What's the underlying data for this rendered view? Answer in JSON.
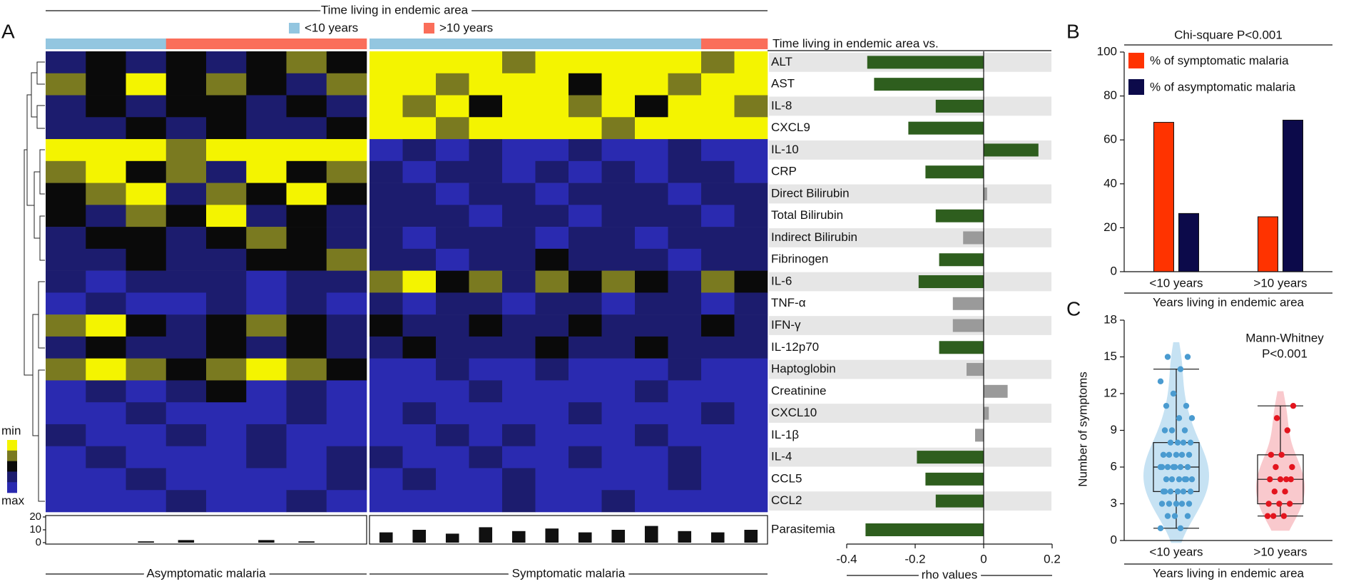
{
  "chart_data": [
    {
      "type": "heatmap",
      "panel": "A",
      "title": "Time living in endemic area",
      "legend": [
        {
          "name": "<10 years",
          "color": "#93c6e0"
        },
        {
          "name": ">10 years",
          "color": "#fa6e5a"
        }
      ],
      "groups": [
        "Asymptomatic malaria",
        "Symptomatic malaria"
      ],
      "outcome_group": [
        0,
        0,
        0,
        0,
        0,
        0,
        0,
        0,
        1,
        1,
        1,
        1,
        1,
        1,
        1,
        1,
        1,
        1,
        1,
        1
      ],
      "time_group": [
        0,
        0,
        0,
        1,
        1,
        1,
        1,
        1,
        0,
        0,
        0,
        0,
        0,
        0,
        0,
        0,
        0,
        0,
        1,
        1
      ],
      "zlim": [
        0,
        4
      ],
      "colorscale": [
        "#f4f400",
        "#7a7a20",
        "#0a0a0a",
        "#1c1c6e",
        "#2a2ab0"
      ],
      "colorbar": [
        "min",
        "max"
      ],
      "values": [
        [
          3,
          2,
          3,
          2,
          3,
          2,
          1,
          2,
          0,
          0,
          0,
          0,
          1,
          0,
          0,
          0,
          0,
          0,
          1,
          0
        ],
        [
          1,
          2,
          0,
          2,
          1,
          2,
          3,
          1,
          0,
          0,
          1,
          0,
          0,
          0,
          2,
          0,
          0,
          1,
          0,
          0
        ],
        [
          3,
          2,
          3,
          2,
          2,
          3,
          2,
          3,
          0,
          1,
          0,
          2,
          0,
          0,
          1,
          0,
          2,
          0,
          0,
          1
        ],
        [
          3,
          3,
          2,
          3,
          2,
          3,
          3,
          2,
          0,
          0,
          1,
          0,
          0,
          0,
          0,
          1,
          0,
          0,
          0,
          0
        ],
        [
          0,
          0,
          0,
          1,
          0,
          0,
          0,
          0,
          4,
          3,
          4,
          3,
          4,
          4,
          3,
          4,
          4,
          3,
          4,
          4
        ],
        [
          1,
          0,
          2,
          1,
          3,
          0,
          2,
          1,
          3,
          4,
          3,
          3,
          4,
          3,
          4,
          3,
          4,
          3,
          3,
          4
        ],
        [
          2,
          1,
          0,
          3,
          1,
          2,
          0,
          2,
          3,
          3,
          4,
          3,
          3,
          4,
          3,
          3,
          3,
          4,
          3,
          3
        ],
        [
          2,
          3,
          1,
          2,
          0,
          3,
          2,
          3,
          3,
          3,
          3,
          4,
          3,
          3,
          4,
          3,
          3,
          3,
          4,
          3
        ],
        [
          3,
          2,
          2,
          3,
          2,
          1,
          2,
          3,
          3,
          4,
          3,
          3,
          3,
          4,
          3,
          3,
          4,
          3,
          3,
          3
        ],
        [
          3,
          3,
          2,
          3,
          3,
          2,
          2,
          1,
          3,
          3,
          4,
          3,
          3,
          2,
          3,
          3,
          3,
          4,
          3,
          3
        ],
        [
          3,
          4,
          3,
          3,
          3,
          4,
          3,
          3,
          1,
          0,
          2,
          1,
          3,
          1,
          2,
          1,
          2,
          3,
          1,
          2
        ],
        [
          4,
          3,
          4,
          4,
          3,
          4,
          3,
          4,
          3,
          4,
          3,
          3,
          4,
          3,
          3,
          4,
          3,
          3,
          4,
          3
        ],
        [
          1,
          0,
          2,
          3,
          2,
          1,
          2,
          3,
          2,
          3,
          3,
          2,
          3,
          3,
          2,
          3,
          3,
          3,
          2,
          3
        ],
        [
          3,
          2,
          3,
          3,
          2,
          3,
          2,
          3,
          3,
          2,
          3,
          3,
          3,
          2,
          3,
          3,
          2,
          3,
          3,
          3
        ],
        [
          1,
          0,
          1,
          2,
          1,
          0,
          1,
          2,
          4,
          4,
          3,
          4,
          4,
          3,
          4,
          4,
          4,
          3,
          4,
          4
        ],
        [
          4,
          3,
          4,
          3,
          2,
          4,
          3,
          4,
          4,
          4,
          4,
          3,
          4,
          4,
          4,
          4,
          3,
          4,
          4,
          4
        ],
        [
          4,
          4,
          3,
          4,
          4,
          4,
          3,
          4,
          4,
          3,
          4,
          4,
          4,
          4,
          3,
          4,
          4,
          4,
          3,
          4
        ],
        [
          3,
          4,
          4,
          3,
          4,
          3,
          4,
          4,
          4,
          4,
          3,
          4,
          3,
          4,
          4,
          4,
          3,
          4,
          4,
          4
        ],
        [
          4,
          3,
          4,
          4,
          4,
          3,
          4,
          3,
          3,
          4,
          4,
          3,
          4,
          4,
          3,
          4,
          4,
          3,
          4,
          4
        ],
        [
          4,
          4,
          3,
          4,
          4,
          4,
          4,
          3,
          4,
          3,
          4,
          4,
          3,
          4,
          4,
          4,
          4,
          3,
          4,
          4
        ],
        [
          4,
          4,
          4,
          3,
          4,
          4,
          3,
          4,
          4,
          4,
          4,
          4,
          3,
          4,
          4,
          3,
          4,
          4,
          4,
          4
        ]
      ],
      "parasitemia": {
        "values": [
          0,
          0,
          1,
          2,
          0,
          2,
          1,
          0,
          8,
          10,
          7,
          12,
          9,
          11,
          8,
          10,
          13,
          9,
          8,
          10
        ],
        "ylim": [
          0,
          20
        ],
        "yticks": [
          0,
          10,
          20
        ]
      }
    },
    {
      "type": "bar",
      "orientation": "horizontal",
      "title": "Time living in endemic area vs.",
      "categories": [
        "ALT",
        "AST",
        "IL-8",
        "CXCL9",
        "IL-10",
        "CRP",
        "Direct Bilirubin",
        "Total Bilirubin",
        "Indirect Bilirubin",
        "Fibrinogen",
        "IL-6",
        "TNF-α",
        "IFN-γ",
        "IL-12p70",
        "Haptoglobin",
        "Creatinine",
        "CXCL10",
        "IL-1β",
        "IL-4",
        "CCL5",
        "CCL2",
        "Parasitemia"
      ],
      "values": [
        -0.34,
        -0.32,
        -0.14,
        -0.22,
        0.16,
        -0.17,
        0.01,
        -0.14,
        -0.06,
        -0.13,
        -0.19,
        -0.09,
        -0.09,
        -0.13,
        -0.05,
        0.07,
        0.015,
        -0.025,
        -0.195,
        -0.17,
        -0.14,
        -0.345
      ],
      "colors": [
        "#2e5e1e",
        "#2e5e1e",
        "#2e5e1e",
        "#2e5e1e",
        "#2e5e1e",
        "#2e5e1e",
        "#9a9a9a",
        "#2e5e1e",
        "#9a9a9a",
        "#2e5e1e",
        "#2e5e1e",
        "#9a9a9a",
        "#9a9a9a",
        "#2e5e1e",
        "#9a9a9a",
        "#9a9a9a",
        "#9a9a9a",
        "#9a9a9a",
        "#2e5e1e",
        "#2e5e1e",
        "#2e5e1e",
        "#2e5e1e"
      ],
      "xlabel": "rho values",
      "xlim": [
        -0.4,
        0.2
      ],
      "xticks": [
        -0.4,
        -0.2,
        0,
        0.2
      ]
    },
    {
      "type": "bar",
      "panel": "B",
      "title": "Chi-square P<0.001",
      "categories": [
        "<10 years",
        ">10 years"
      ],
      "series": [
        {
          "name": "% of symptomatic malaria",
          "color": "#ff3300",
          "values": [
            68,
            25
          ]
        },
        {
          "name": "% of asymptomatic malaria",
          "color": "#0c0a4a",
          "values": [
            26.5,
            69
          ]
        }
      ],
      "xlabel": "Years living in endemic area",
      "ylim": [
        0,
        100
      ],
      "yticks": [
        0,
        20,
        40,
        60,
        80,
        100
      ]
    },
    {
      "type": "violin",
      "panel": "C",
      "annotation": [
        "Mann-Whitney",
        "P<0.001"
      ],
      "categories": [
        "<10 years",
        ">10 years"
      ],
      "colors": [
        "#4a9bd0",
        "#e3141e"
      ],
      "fills": [
        "#c6e2f3",
        "#f9c9cd"
      ],
      "points": [
        [
          1,
          1,
          2,
          2,
          2,
          3,
          3,
          3,
          3,
          3,
          4,
          4,
          4,
          4,
          4,
          4,
          5,
          5,
          5,
          5,
          5,
          5,
          6,
          6,
          6,
          6,
          6,
          6,
          6,
          7,
          7,
          7,
          7,
          7,
          8,
          8,
          8,
          8,
          9,
          9,
          9,
          10,
          10,
          11,
          11,
          12,
          13,
          14,
          15,
          15
        ],
        [
          2,
          2,
          2,
          3,
          3,
          3,
          4,
          4,
          5,
          5,
          5,
          5,
          6,
          6,
          7,
          7,
          9,
          10,
          11
        ]
      ],
      "boxes": [
        {
          "min": 1,
          "q1": 4,
          "median": 6,
          "q3": 8,
          "max": 14
        },
        {
          "min": 2,
          "q1": 3,
          "median": 5,
          "q3": 7,
          "max": 11
        }
      ],
      "ylabel": "Number of symptoms",
      "xlabel": "Years living in endemic area",
      "ylim": [
        0,
        18
      ],
      "yticks": [
        0,
        3,
        6,
        9,
        12,
        15,
        18
      ]
    }
  ]
}
